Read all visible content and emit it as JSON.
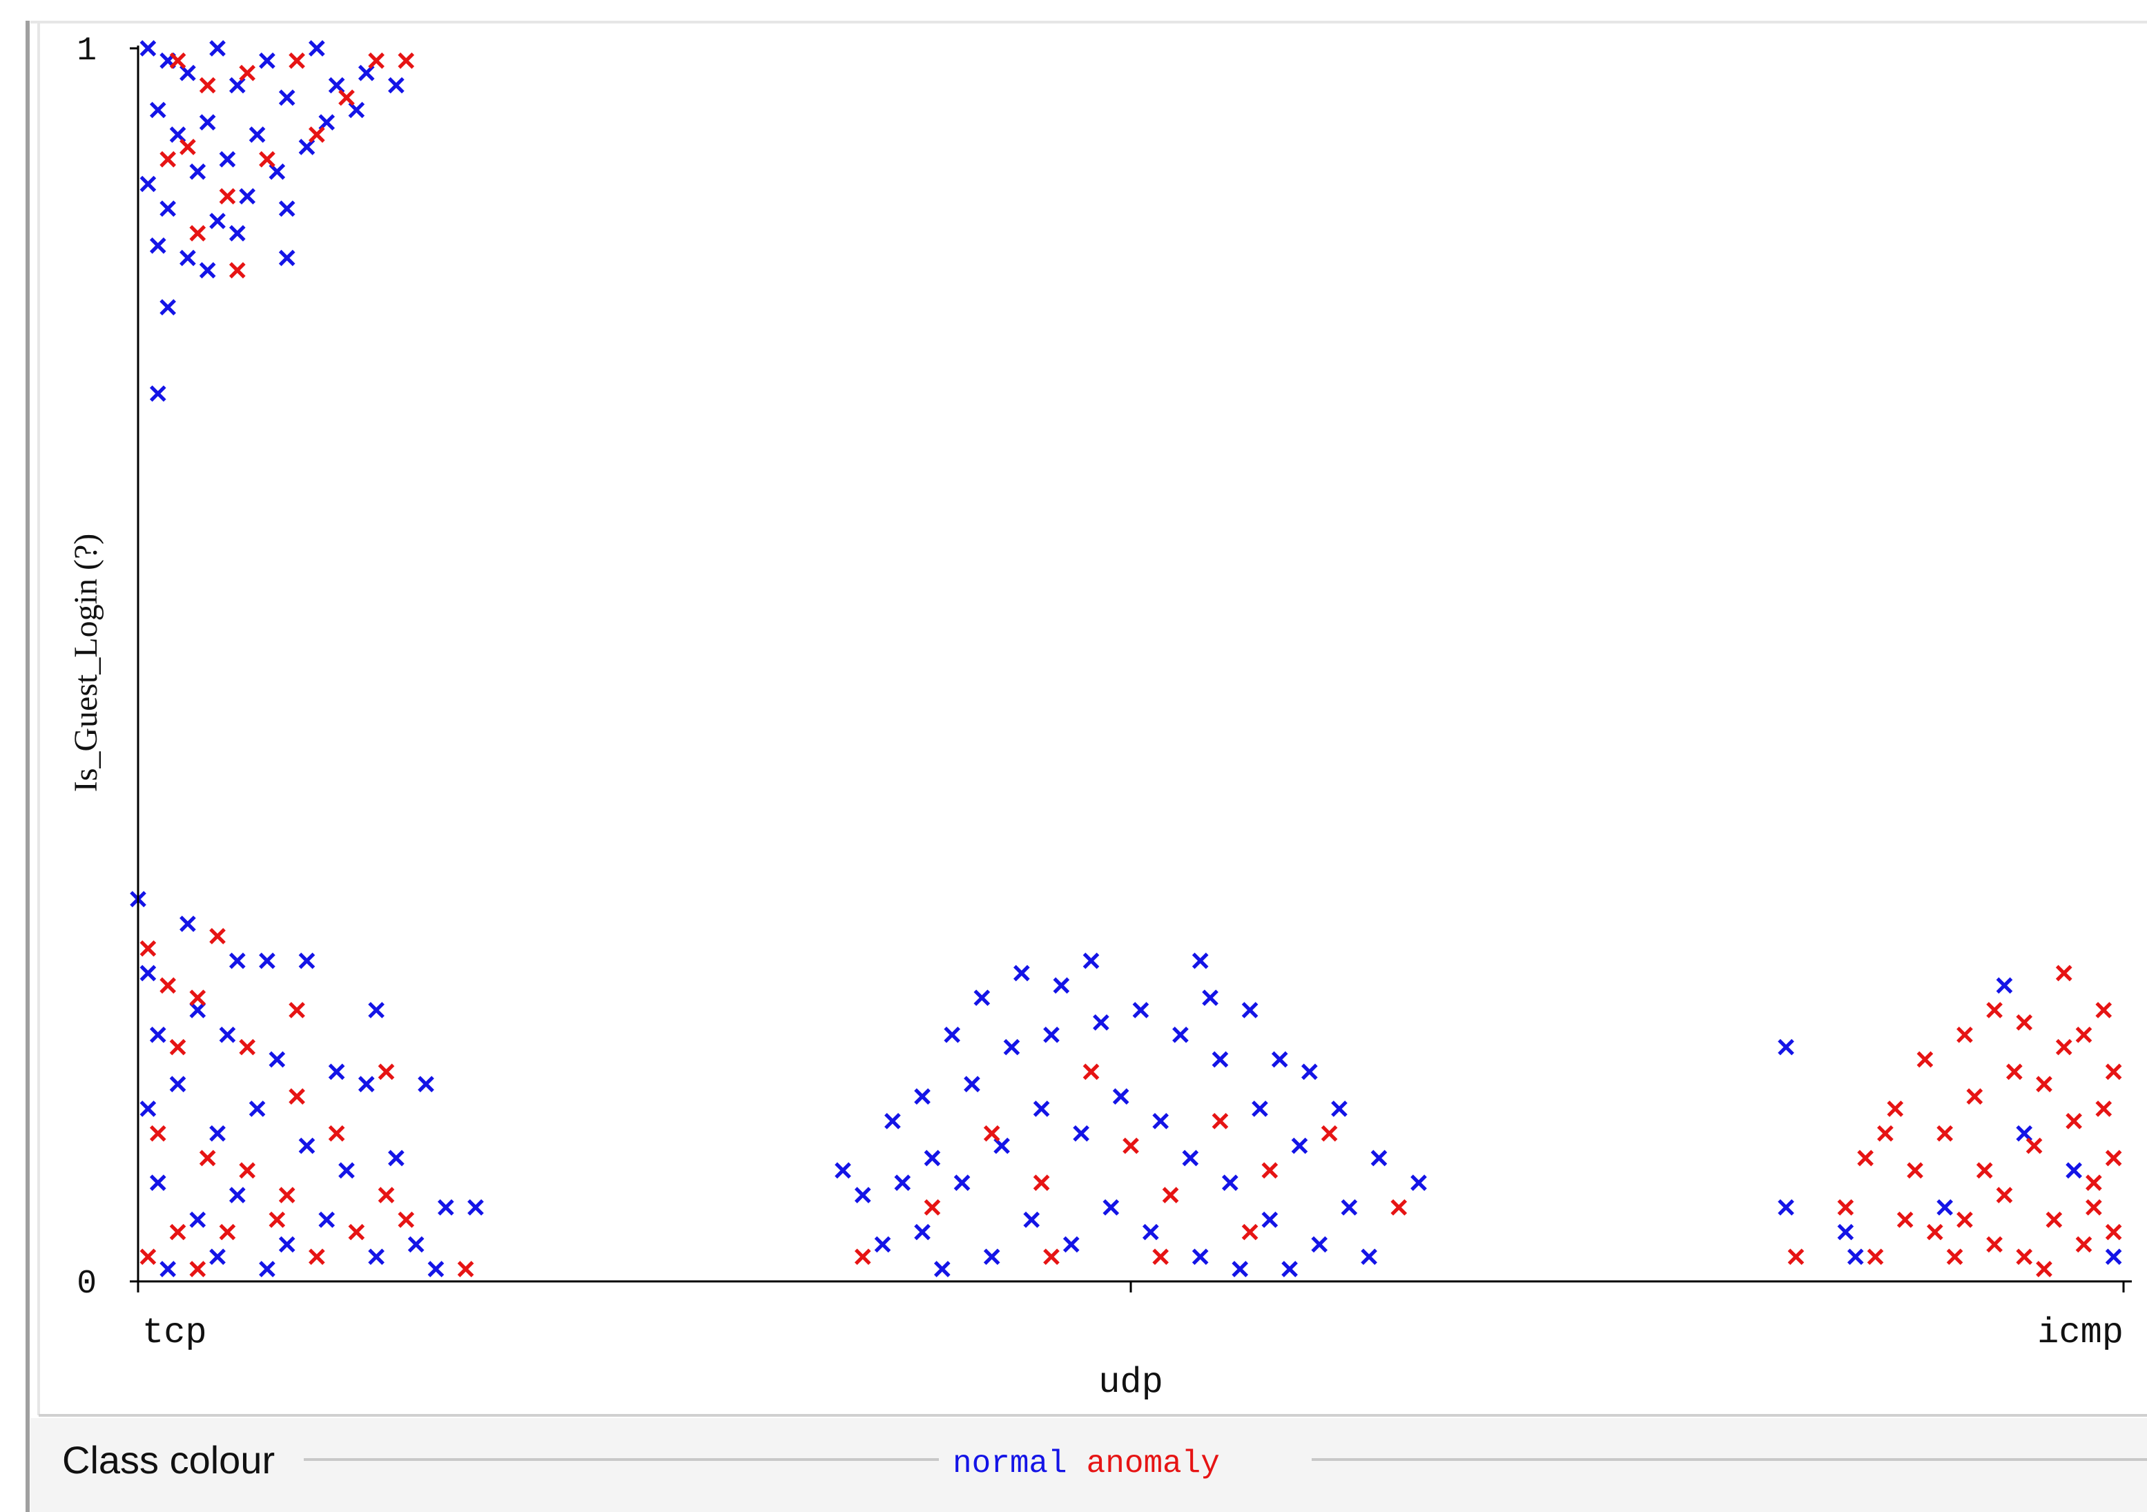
{
  "chart_data": {
    "type": "scatter",
    "y_label": "Is_Guest_Login (?)",
    "legend_title": "Class colour",
    "xlim": [
      0,
      2
    ],
    "ylim": [
      0,
      1
    ],
    "xticks": [
      {
        "value": 0,
        "label": "tcp"
      },
      {
        "value": 1,
        "label": "udp"
      },
      {
        "value": 2,
        "label": "icmp"
      }
    ],
    "yticks": [
      0,
      1
    ],
    "marker": "x",
    "series": [
      {
        "name": "normal",
        "color": "#1414e6",
        "x": [
          0.01,
          0.03,
          0.05,
          0.08,
          0.1,
          0.13,
          0.15,
          0.18,
          0.2,
          0.23,
          0.26,
          0.02,
          0.04,
          0.07,
          0.09,
          0.12,
          0.14,
          0.17,
          0.19,
          0.22,
          0.01,
          0.03,
          0.06,
          0.08,
          0.11,
          0.15,
          0.02,
          0.05,
          0.07,
          0.1,
          0.15,
          0.03,
          0.02,
          0.0,
          0.01,
          0.05,
          0.1,
          0.13,
          0.17,
          0.24,
          0.02,
          0.06,
          0.09,
          0.14,
          0.2,
          0.23,
          0.29,
          0.01,
          0.04,
          0.08,
          0.12,
          0.17,
          0.21,
          0.26,
          0.31,
          0.34,
          0.02,
          0.06,
          0.1,
          0.15,
          0.19,
          0.24,
          0.28,
          0.03,
          0.08,
          0.13,
          0.3,
          0.71,
          0.73,
          0.76,
          0.79,
          0.82,
          0.85,
          0.89,
          0.93,
          0.96,
          1.07,
          1.08,
          1.12,
          1.15,
          1.18,
          1.21,
          1.25,
          1.29,
          0.77,
          0.8,
          0.84,
          0.88,
          0.92,
          0.97,
          1.01,
          1.05,
          1.09,
          1.13,
          1.17,
          1.22,
          0.75,
          0.79,
          0.83,
          0.87,
          0.91,
          0.95,
          0.99,
          1.03,
          1.06,
          1.1,
          1.14,
          1.19,
          1.24,
          0.81,
          0.86,
          0.9,
          0.94,
          0.98,
          1.02,
          1.07,
          1.11,
          1.16,
          1.66,
          1.66,
          1.72,
          1.73,
          1.88,
          1.95,
          1.99,
          1.9,
          1.82
        ],
        "values": [
          1.0,
          0.99,
          0.98,
          1.0,
          0.97,
          0.99,
          0.96,
          1.0,
          0.97,
          0.98,
          0.97,
          0.95,
          0.93,
          0.94,
          0.91,
          0.93,
          0.9,
          0.92,
          0.94,
          0.95,
          0.89,
          0.87,
          0.9,
          0.86,
          0.88,
          0.87,
          0.84,
          0.83,
          0.82,
          0.85,
          0.83,
          0.79,
          0.72,
          0.31,
          0.25,
          0.29,
          0.26,
          0.26,
          0.26,
          0.22,
          0.2,
          0.22,
          0.2,
          0.18,
          0.17,
          0.16,
          0.16,
          0.14,
          0.16,
          0.12,
          0.14,
          0.11,
          0.09,
          0.1,
          0.06,
          0.06,
          0.08,
          0.05,
          0.07,
          0.03,
          0.05,
          0.02,
          0.03,
          0.01,
          0.02,
          0.01,
          0.01,
          0.09,
          0.07,
          0.13,
          0.15,
          0.2,
          0.23,
          0.25,
          0.24,
          0.26,
          0.26,
          0.23,
          0.22,
          0.18,
          0.17,
          0.14,
          0.1,
          0.08,
          0.08,
          0.1,
          0.16,
          0.19,
          0.2,
          0.21,
          0.22,
          0.2,
          0.18,
          0.14,
          0.11,
          0.06,
          0.03,
          0.04,
          0.08,
          0.11,
          0.14,
          0.12,
          0.15,
          0.13,
          0.1,
          0.08,
          0.05,
          0.03,
          0.02,
          0.01,
          0.02,
          0.05,
          0.03,
          0.06,
          0.04,
          0.02,
          0.01,
          0.01,
          0.19,
          0.06,
          0.04,
          0.02,
          0.24,
          0.09,
          0.02,
          0.12,
          0.06
        ]
      },
      {
        "name": "anomaly",
        "color": "#e61414",
        "x": [
          0.04,
          0.07,
          0.11,
          0.16,
          0.21,
          0.24,
          0.27,
          0.03,
          0.05,
          0.09,
          0.13,
          0.18,
          0.06,
          0.1,
          0.01,
          0.03,
          0.06,
          0.08,
          0.16,
          0.04,
          0.11,
          0.16,
          0.25,
          0.02,
          0.07,
          0.11,
          0.15,
          0.2,
          0.25,
          0.04,
          0.09,
          0.14,
          0.18,
          0.22,
          0.27,
          0.33,
          0.01,
          0.06,
          0.73,
          0.8,
          0.86,
          0.91,
          0.96,
          1.0,
          1.04,
          1.09,
          1.14,
          1.2,
          1.27,
          0.92,
          1.03,
          1.12,
          1.67,
          1.72,
          1.74,
          1.77,
          1.78,
          1.8,
          1.82,
          1.84,
          1.86,
          1.87,
          1.9,
          1.92,
          1.94,
          1.96,
          1.98,
          1.99,
          1.75,
          1.79,
          1.83,
          1.85,
          1.88,
          1.91,
          1.93,
          1.95,
          1.97,
          1.99,
          1.81,
          1.89,
          1.92,
          1.96,
          1.98,
          1.76,
          1.84,
          1.87,
          1.9,
          1.94,
          1.97,
          1.99
        ],
        "values": [
          0.99,
          0.97,
          0.98,
          0.99,
          0.96,
          0.99,
          0.99,
          0.91,
          0.92,
          0.88,
          0.91,
          0.93,
          0.85,
          0.82,
          0.27,
          0.24,
          0.23,
          0.28,
          0.22,
          0.19,
          0.19,
          0.15,
          0.17,
          0.12,
          0.1,
          0.09,
          0.07,
          0.12,
          0.07,
          0.04,
          0.04,
          0.05,
          0.02,
          0.04,
          0.05,
          0.01,
          0.02,
          0.01,
          0.02,
          0.06,
          0.12,
          0.08,
          0.17,
          0.11,
          0.07,
          0.13,
          0.09,
          0.12,
          0.06,
          0.02,
          0.02,
          0.04,
          0.02,
          0.06,
          0.1,
          0.14,
          0.05,
          0.18,
          0.12,
          0.2,
          0.09,
          0.03,
          0.21,
          0.16,
          0.25,
          0.2,
          0.22,
          0.17,
          0.02,
          0.09,
          0.02,
          0.15,
          0.07,
          0.11,
          0.05,
          0.13,
          0.08,
          0.1,
          0.04,
          0.17,
          0.01,
          0.03,
          0.14,
          0.12,
          0.05,
          0.22,
          0.02,
          0.19,
          0.06,
          0.04
        ]
      }
    ]
  }
}
